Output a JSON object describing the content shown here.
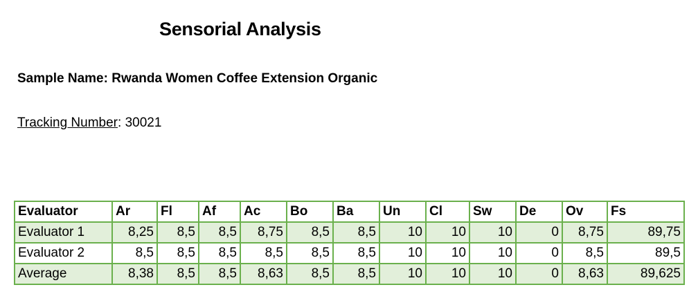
{
  "title": "Sensorial Analysis",
  "sample": {
    "label": "Sample Name:",
    "value": "Rwanda Women Coffee Extension Organic"
  },
  "tracking": {
    "label": "Tracking Number",
    "colon": ":",
    "value": "30021"
  },
  "table": {
    "columns": [
      "Evaluator",
      "Ar",
      "Fl",
      "Af",
      "Ac",
      "Bo",
      "Ba",
      "Un",
      "Cl",
      "Sw",
      "De",
      "Ov",
      "Fs"
    ],
    "rows": [
      [
        "Evaluator 1",
        "8,25",
        "8,5",
        "8,5",
        "8,75",
        "8,5",
        "8,5",
        "10",
        "10",
        "10",
        "0",
        "8,75",
        "89,75"
      ],
      [
        "Evaluator 2",
        "8,5",
        "8,5",
        "8,5",
        "8,5",
        "8,5",
        "8,5",
        "10",
        "10",
        "10",
        "0",
        "8,5",
        "89,5"
      ],
      [
        "Average",
        "8,38",
        "8,5",
        "8,5",
        "8,63",
        "8,5",
        "8,5",
        "10",
        "10",
        "10",
        "0",
        "8,63",
        "89,625"
      ]
    ]
  },
  "colors": {
    "border": "#6ab04c",
    "shaded_row": "#e2efda"
  }
}
